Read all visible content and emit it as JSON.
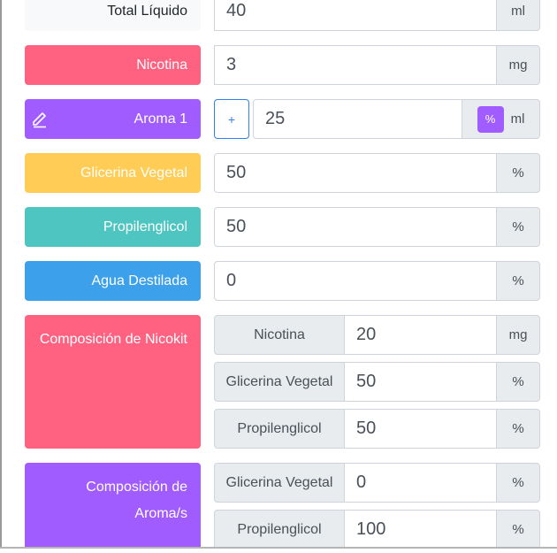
{
  "colors": {
    "nicotina": "#ff6281",
    "aroma": "#a15cff",
    "glicerina": "#ffcc55",
    "propilenglicol": "#4ec5c1",
    "agua": "#3ca1ea"
  },
  "rows": {
    "total": {
      "label": "Total Líquido",
      "value": "40",
      "unit": "ml"
    },
    "nicotina": {
      "label": "Nicotina",
      "value": "3",
      "unit": "mg"
    },
    "aroma": {
      "label": "Aroma 1",
      "icon": "edit-icon",
      "plus": "+",
      "value": "25",
      "toggle": "%",
      "unit": "ml"
    },
    "glicerina": {
      "label": "Glicerina Vegetal",
      "value": "50",
      "unit": "%"
    },
    "propilenglicol": {
      "label": "Propilenglicol",
      "value": "50",
      "unit": "%"
    },
    "agua": {
      "label": "Agua Destilada",
      "value": "0",
      "unit": "%"
    }
  },
  "nicokit": {
    "label": "Composición de Nicokit",
    "items": [
      {
        "label": "Nicotina",
        "value": "20",
        "unit": "mg"
      },
      {
        "label": "Glicerina Vegetal",
        "value": "50",
        "unit": "%"
      },
      {
        "label": "Propilenglicol",
        "value": "50",
        "unit": "%"
      }
    ]
  },
  "aromas_comp": {
    "label_line1": "Composición de",
    "label_line2": "Aroma/s",
    "items": [
      {
        "label": "Glicerina Vegetal",
        "value": "0",
        "unit": "%"
      },
      {
        "label": "Propilenglicol",
        "value": "100",
        "unit": "%"
      }
    ]
  }
}
